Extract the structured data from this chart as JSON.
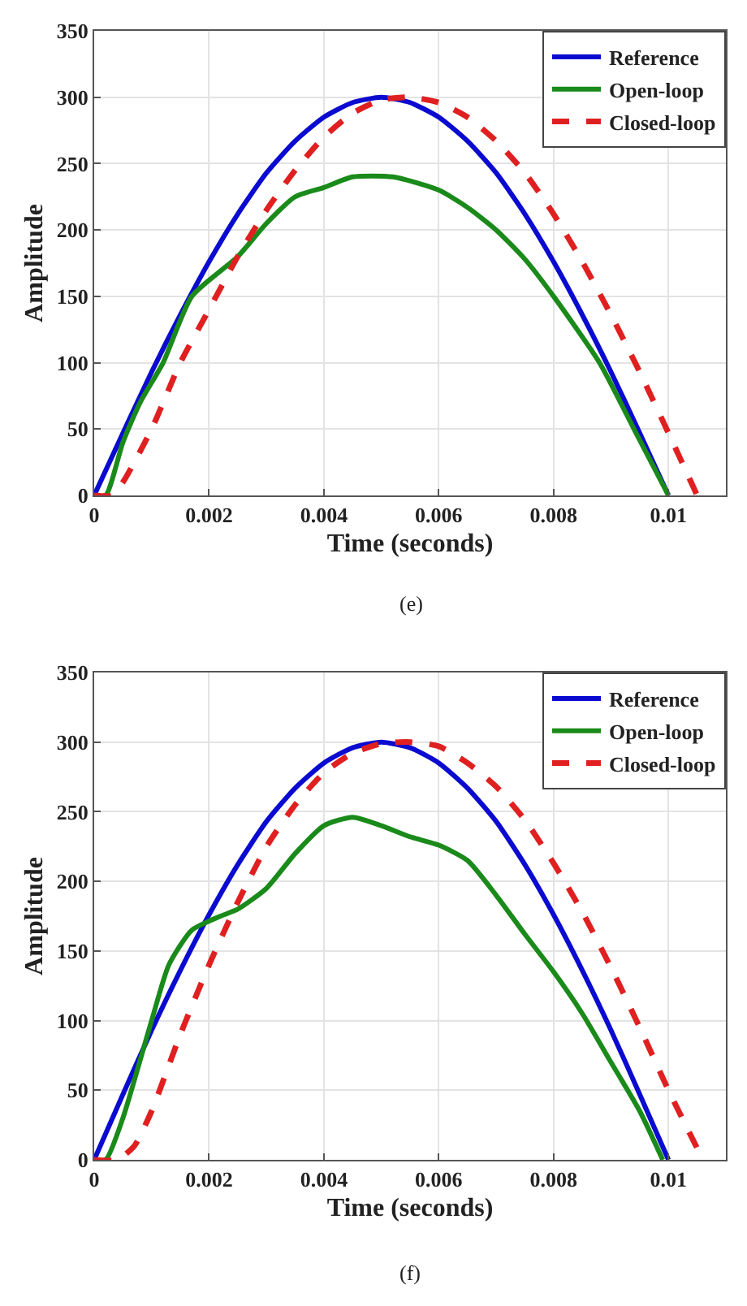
{
  "chart_data": [
    {
      "type": "line",
      "xlabel": "Time (seconds)",
      "ylabel": "Amplitude",
      "annotations": [
        "(e)"
      ],
      "xlim": [
        0,
        0.011
      ],
      "xticks": [
        0,
        0.002,
        0.004,
        0.006,
        0.008,
        0.01
      ],
      "ylim": [
        0,
        350
      ],
      "yticks": [
        0,
        50,
        100,
        150,
        200,
        250,
        300,
        350
      ],
      "grid": true,
      "legend": "top right",
      "series": [
        {
          "name": "Reference",
          "color": "#0a0ad0",
          "line_style": "solid",
          "x": [
            0,
            0.0005,
            0.001,
            0.0015,
            0.002,
            0.0025,
            0.003,
            0.0035,
            0.004,
            0.0045,
            0.005,
            0.0055,
            0.006,
            0.0065,
            0.007,
            0.0075,
            0.008,
            0.0085,
            0.009,
            0.0095,
            0.01
          ],
          "values": [
            0,
            47,
            93,
            136,
            176,
            212,
            243,
            267,
            285,
            296,
            300,
            296,
            285,
            267,
            243,
            212,
            176,
            136,
            93,
            47,
            0
          ]
        },
        {
          "name": "Open-loop",
          "color": "#1a8a1a",
          "line_style": "solid",
          "x": [
            0,
            0.0002,
            0.0005,
            0.0008,
            0.0012,
            0.0017,
            0.0025,
            0.003,
            0.0035,
            0.004,
            0.0045,
            0.0052,
            0.006,
            0.0065,
            0.007,
            0.0075,
            0.008,
            0.0088,
            0.0094,
            0.01
          ],
          "values": [
            0,
            0,
            40,
            70,
            100,
            150,
            180,
            205,
            225,
            232,
            240,
            240,
            230,
            217,
            200,
            178,
            150,
            100,
            50,
            0
          ]
        },
        {
          "name": "Closed-loop",
          "color": "#e02020",
          "line_style": "dashed",
          "x": [
            0,
            0.0003,
            0.0005,
            0.001,
            0.0015,
            0.002,
            0.0025,
            0.003,
            0.0035,
            0.004,
            0.0045,
            0.005,
            0.0055,
            0.006,
            0.0065,
            0.007,
            0.0075,
            0.008,
            0.0085,
            0.009,
            0.0095,
            0.01,
            0.0105
          ],
          "values": [
            0,
            0,
            10,
            50,
            100,
            140,
            180,
            215,
            245,
            270,
            288,
            298,
            300,
            296,
            285,
            267,
            243,
            212,
            176,
            136,
            93,
            47,
            0
          ]
        }
      ]
    },
    {
      "type": "line",
      "xlabel": "Time (seconds)",
      "ylabel": "Amplitude",
      "annotations": [
        "(f)"
      ],
      "xlim": [
        0,
        0.011
      ],
      "xticks": [
        0,
        0.002,
        0.004,
        0.006,
        0.008,
        0.01
      ],
      "ylim": [
        0,
        350
      ],
      "yticks": [
        0,
        50,
        100,
        150,
        200,
        250,
        300,
        350
      ],
      "grid": true,
      "legend": "top right",
      "series": [
        {
          "name": "Reference",
          "color": "#0a0ad0",
          "line_style": "solid",
          "x": [
            0,
            0.0005,
            0.001,
            0.0015,
            0.002,
            0.0025,
            0.003,
            0.0035,
            0.004,
            0.0045,
            0.005,
            0.0055,
            0.006,
            0.0065,
            0.007,
            0.0075,
            0.008,
            0.0085,
            0.009,
            0.0095,
            0.01
          ],
          "values": [
            0,
            47,
            93,
            136,
            176,
            212,
            243,
            267,
            285,
            296,
            300,
            296,
            285,
            267,
            243,
            212,
            176,
            136,
            93,
            47,
            0
          ]
        },
        {
          "name": "Open-loop",
          "color": "#1a8a1a",
          "line_style": "solid",
          "x": [
            0,
            0.0002,
            0.0005,
            0.001,
            0.0013,
            0.0017,
            0.0022,
            0.0025,
            0.003,
            0.0035,
            0.004,
            0.0045,
            0.005,
            0.0055,
            0.006,
            0.0065,
            0.007,
            0.0075,
            0.008,
            0.0085,
            0.009,
            0.0095,
            0.0099
          ],
          "values": [
            0,
            0,
            30,
            100,
            140,
            165,
            175,
            180,
            195,
            220,
            240,
            246,
            240,
            232,
            226,
            215,
            190,
            162,
            135,
            105,
            70,
            35,
            0
          ]
        },
        {
          "name": "Closed-loop",
          "color": "#e02020",
          "line_style": "dashed",
          "x": [
            0,
            0.0004,
            0.0007,
            0.001,
            0.0015,
            0.002,
            0.0025,
            0.003,
            0.0035,
            0.004,
            0.0045,
            0.005,
            0.0055,
            0.006,
            0.0065,
            0.007,
            0.0075,
            0.008,
            0.0085,
            0.009,
            0.0095,
            0.01,
            0.0106
          ],
          "values": [
            0,
            0,
            10,
            35,
            90,
            140,
            185,
            225,
            255,
            278,
            292,
            299,
            300,
            297,
            285,
            268,
            244,
            213,
            178,
            138,
            95,
            50,
            0
          ]
        }
      ]
    }
  ]
}
